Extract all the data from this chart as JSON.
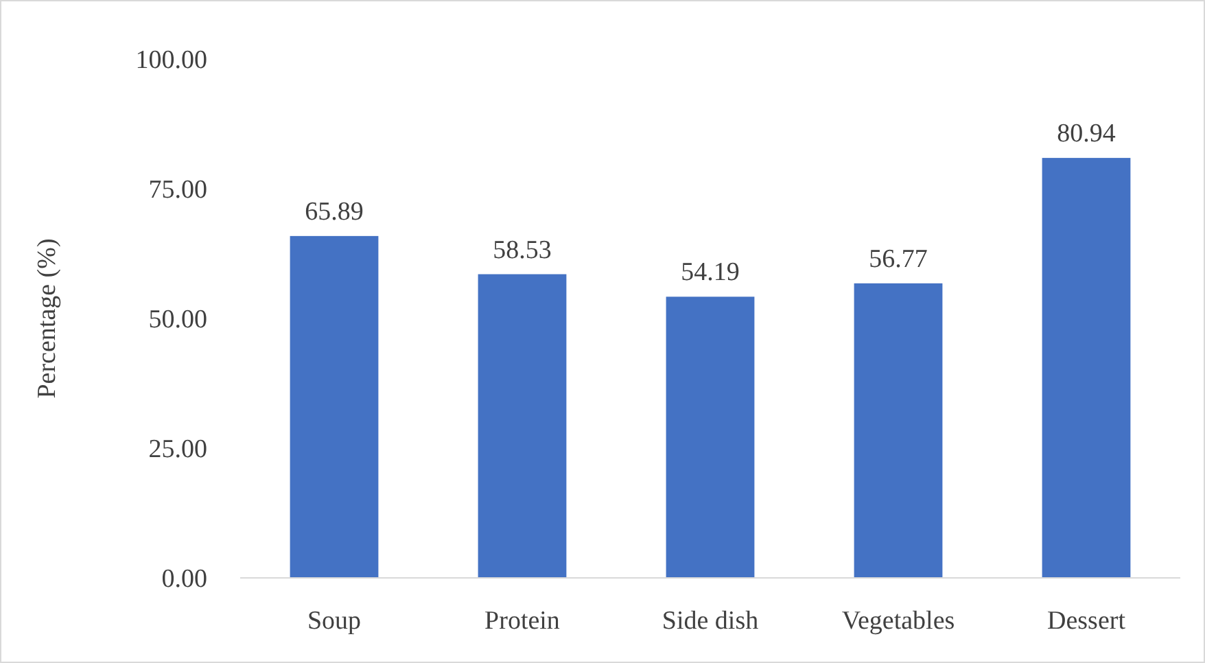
{
  "chart_data": {
    "type": "bar",
    "ylabel": "Percentage (%)",
    "categories": [
      "Soup",
      "Protein",
      "Side dish",
      "Vegetables",
      "Dessert"
    ],
    "values": [
      65.89,
      58.53,
      54.19,
      56.77,
      80.94
    ],
    "color": "#4472c4",
    "ylim": [
      0,
      100
    ],
    "yticks": [
      {
        "value": 0,
        "label": "0.00"
      },
      {
        "value": 25,
        "label": "25.00"
      },
      {
        "value": 50,
        "label": "50.00"
      },
      {
        "value": 75,
        "label": "75.00"
      },
      {
        "value": 100,
        "label": "100.00"
      }
    ],
    "data_labels": true,
    "grid": false
  }
}
